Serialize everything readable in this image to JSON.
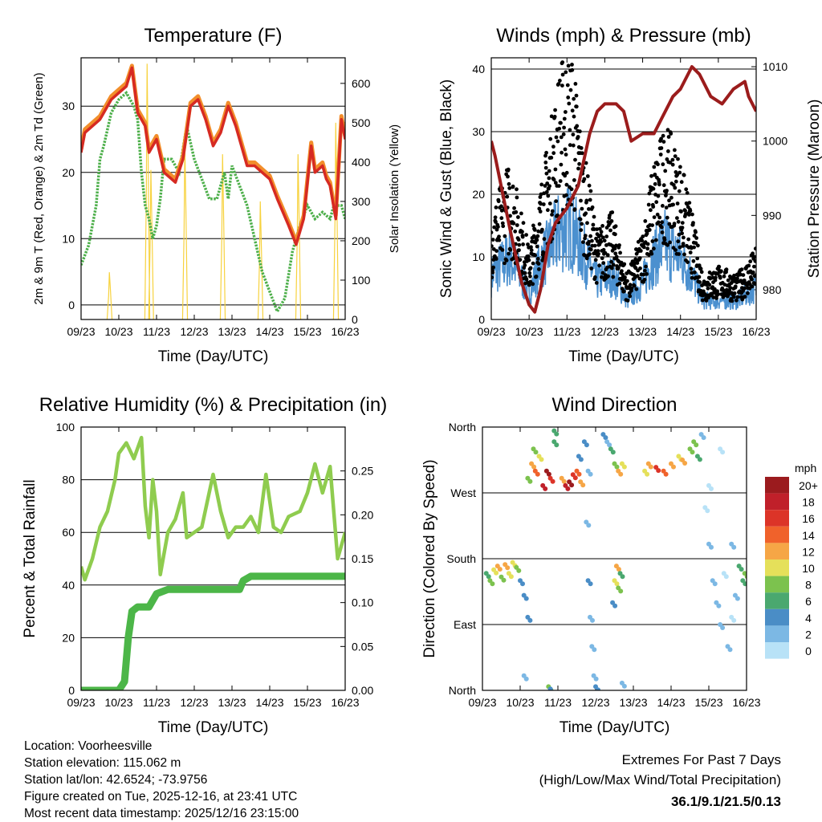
{
  "chart_data": [
    {
      "type": "line",
      "title": "Temperature (F)",
      "xlabel": "Time (Day/UTC)",
      "ylabel": "2m & 9m T (Red, Orange) & 2m Td (Green)",
      "y2label": "Solar Insolation (Yellow)",
      "x_tick_labels": [
        "09/23",
        "10/23",
        "11/23",
        "12/23",
        "13/23",
        "14/23",
        "15/23",
        "16/23"
      ],
      "xlim": [
        0,
        7
      ],
      "ylim": [
        -2.2,
        37.3
      ],
      "y_ticks": [
        0,
        10,
        20,
        30
      ],
      "y_tick_labels": [
        "0",
        "10",
        "20",
        "30"
      ],
      "y2lim": [
        0,
        665
      ],
      "y2_ticks": [
        0,
        100,
        200,
        300,
        400,
        500,
        600
      ],
      "y2_tick_labels": [
        "0",
        "100",
        "200",
        "300",
        "400",
        "500",
        "600"
      ],
      "series": [
        {
          "name": "9m T",
          "color": "#f28e2b",
          "axis": "left",
          "x": [
            0,
            0.1,
            0.5,
            0.8,
            1.0,
            1.2,
            1.35,
            1.5,
            1.7,
            1.8,
            2.0,
            2.2,
            2.5,
            2.7,
            2.9,
            3.1,
            3.3,
            3.5,
            3.7,
            3.9,
            4.1,
            4.4,
            4.6,
            4.8,
            5.0,
            5.2,
            5.5,
            5.7,
            5.9,
            6.1,
            6.2,
            6.4,
            6.5,
            6.6,
            6.75,
            6.9,
            7.0
          ],
          "y": [
            23.5,
            26.5,
            28.5,
            31.5,
            32.5,
            33.5,
            36.1,
            29.5,
            27.5,
            23.5,
            25.5,
            20.5,
            19,
            22.5,
            30.5,
            31.5,
            28.5,
            24.5,
            26.5,
            30.5,
            27.5,
            21.5,
            21.5,
            20.5,
            19.5,
            16.5,
            12.5,
            9.6,
            13.5,
            24.5,
            20.5,
            21.5,
            19.5,
            18.5,
            13.5,
            28.5,
            25.5
          ]
        },
        {
          "name": "2m T",
          "color": "#d62a22",
          "axis": "left",
          "x": [
            0,
            0.1,
            0.5,
            0.8,
            1.0,
            1.2,
            1.35,
            1.5,
            1.7,
            1.8,
            2.0,
            2.2,
            2.5,
            2.7,
            2.9,
            3.1,
            3.3,
            3.5,
            3.7,
            3.9,
            4.1,
            4.4,
            4.6,
            4.8,
            5.0,
            5.2,
            5.5,
            5.7,
            5.9,
            6.1,
            6.2,
            6.4,
            6.5,
            6.6,
            6.75,
            6.9,
            7.0
          ],
          "y": [
            23,
            26,
            28,
            31,
            32,
            33,
            35.8,
            29,
            27,
            23,
            25,
            20,
            18.5,
            22,
            30,
            31,
            28,
            24,
            26,
            30,
            27,
            21,
            21,
            20,
            19,
            16,
            12,
            9.1,
            13,
            24,
            20,
            21,
            19,
            18,
            13,
            28,
            25
          ]
        },
        {
          "name": "2m Td",
          "color": "#4daf4a",
          "axis": "left",
          "x": [
            0,
            0.2,
            0.4,
            0.5,
            0.6,
            0.8,
            1.0,
            1.2,
            1.4,
            1.5,
            1.6,
            1.7,
            1.8,
            1.9,
            2.0,
            2.1,
            2.2,
            2.4,
            2.6,
            2.8,
            3.0,
            3.2,
            3.4,
            3.6,
            3.8,
            3.9,
            4.0,
            4.2,
            4.4,
            4.6,
            4.8,
            5.0,
            5.2,
            5.4,
            5.6,
            5.8,
            6.0,
            6.2,
            6.4,
            6.6,
            6.7,
            6.9,
            7.0
          ],
          "y": [
            6,
            9,
            15,
            22,
            24,
            29,
            31,
            32,
            30,
            28,
            20,
            15,
            13,
            10,
            12,
            16,
            22,
            22,
            20,
            27,
            22,
            19,
            16,
            16,
            20,
            16,
            21,
            18,
            15,
            10,
            5,
            2,
            -1,
            1,
            8,
            12,
            15,
            13,
            14,
            13,
            15,
            15,
            13
          ]
        },
        {
          "name": "Solar Insolation",
          "color": "#f7d23e",
          "axis": "right",
          "peaks_x": [
            0.75,
            1.75,
            1.85,
            2.75,
            3.75,
            4.75,
            5.75,
            6.75
          ],
          "peaks_y": [
            120,
            650,
            380,
            450,
            420,
            300,
            420,
            500
          ]
        }
      ]
    },
    {
      "type": "scatter",
      "title": "Winds (mph) & Pressure (mb)",
      "xlabel": "Time (Day/UTC)",
      "ylabel": "Sonic Wind & Gust (Blue, Black)",
      "y2label": "Station Pressure (Maroon)",
      "x_tick_labels": [
        "09/23",
        "10/23",
        "11/23",
        "12/23",
        "13/23",
        "14/23",
        "15/23",
        "16/23"
      ],
      "xlim": [
        0,
        7
      ],
      "ylim": [
        0,
        41.8
      ],
      "y_ticks": [
        0,
        10,
        20,
        30,
        40
      ],
      "y_tick_labels": [
        "0",
        "10",
        "20",
        "30",
        "40"
      ],
      "y2lim": [
        976,
        1011.2
      ],
      "y2_ticks": [
        980,
        990,
        1000,
        1010
      ],
      "y2_tick_labels": [
        "980",
        "990",
        "1000",
        "1010"
      ],
      "series": [
        {
          "name": "Gust",
          "color": "#000000",
          "axis": "left",
          "x": [
            0,
            0.5,
            1.0,
            1.3,
            1.8,
            2.1,
            2.4,
            2.8,
            3.2,
            3.6,
            4.0,
            4.3,
            4.6,
            5.0,
            5.3,
            5.6,
            6.0,
            6.5,
            7.0
          ],
          "y": [
            12,
            18,
            8,
            15,
            28,
            32,
            20,
            10,
            12,
            5,
            10,
            18,
            22,
            18,
            12,
            5,
            6,
            5,
            8
          ]
        },
        {
          "name": "Sonic Wind",
          "color": "#4b90cf",
          "axis": "left",
          "x": [
            0,
            0.5,
            1.0,
            1.3,
            1.8,
            2.1,
            2.4,
            2.8,
            3.2,
            3.6,
            4.0,
            4.3,
            4.6,
            5.0,
            5.3,
            5.6,
            6.0,
            6.5,
            7.0
          ],
          "y": [
            7,
            10,
            4,
            9,
            14,
            15,
            11,
            6,
            7,
            3,
            6,
            10,
            12,
            10,
            7,
            3,
            3,
            3,
            5
          ]
        },
        {
          "name": "Station Pressure",
          "color": "#9b1c1c",
          "axis": "right",
          "x": [
            0,
            0.1,
            0.3,
            0.5,
            0.8,
            1.0,
            1.15,
            1.3,
            1.5,
            1.7,
            2.0,
            2.3,
            2.6,
            2.8,
            3.0,
            3.3,
            3.5,
            3.7,
            4.0,
            4.3,
            4.5,
            4.8,
            5.0,
            5.3,
            5.5,
            5.8,
            6.1,
            6.4,
            6.7,
            6.8,
            7.0
          ],
          "y": [
            1000,
            998,
            993,
            988,
            981,
            978,
            977,
            980,
            986,
            989,
            991,
            994,
            1001,
            1004,
            1005,
            1005,
            1004,
            1000,
            1001,
            1001,
            1003,
            1006,
            1007,
            1010,
            1009,
            1006,
            1005,
            1007,
            1008,
            1006,
            1004
          ]
        }
      ]
    },
    {
      "type": "line",
      "title": "Relative Humidity (%) & Precipitation (in)",
      "xlabel": "Time (Day/UTC)",
      "ylabel": "Percent & Total Rainfall",
      "x_tick_labels": [
        "09/23",
        "10/23",
        "11/23",
        "12/23",
        "13/23",
        "14/23",
        "15/23",
        "16/23"
      ],
      "xlim": [
        0,
        7
      ],
      "ylim": [
        0,
        100
      ],
      "y_ticks": [
        0,
        20,
        40,
        60,
        80,
        100
      ],
      "y_tick_labels": [
        "0",
        "20",
        "40",
        "60",
        "80",
        "100"
      ],
      "y2lim": [
        0,
        0.3
      ],
      "y2_ticks": [
        0,
        0.05,
        0.1,
        0.15,
        0.2,
        0.25
      ],
      "y2_tick_labels": [
        "0.00",
        "0.05",
        "0.10",
        "0.15",
        "0.20",
        "0.25"
      ],
      "series": [
        {
          "name": "Relative Humidity",
          "color": "#8fcc4f",
          "axis": "left",
          "x": [
            0,
            0.1,
            0.3,
            0.5,
            0.7,
            0.9,
            1.0,
            1.2,
            1.4,
            1.6,
            1.7,
            1.8,
            1.9,
            2.0,
            2.1,
            2.3,
            2.5,
            2.7,
            2.8,
            3.0,
            3.2,
            3.5,
            3.7,
            3.9,
            4.1,
            4.3,
            4.5,
            4.7,
            4.9,
            5.1,
            5.3,
            5.5,
            5.8,
            6.0,
            6.2,
            6.4,
            6.6,
            6.8,
            7.0
          ],
          "y": [
            47,
            42,
            50,
            62,
            68,
            80,
            90,
            94,
            88,
            96,
            70,
            58,
            80,
            68,
            44,
            60,
            65,
            75,
            58,
            60,
            62,
            82,
            68,
            58,
            62,
            62,
            66,
            60,
            82,
            62,
            60,
            66,
            68,
            75,
            86,
            75,
            85,
            50,
            60
          ]
        },
        {
          "name": "Total Precipitation",
          "color": "#4cb648",
          "axis": "right",
          "x": [
            0,
            1.0,
            1.15,
            1.25,
            1.35,
            1.5,
            1.8,
            2.0,
            2.3,
            3.0,
            4.2,
            4.3,
            4.5,
            7.0
          ],
          "y": [
            0,
            0,
            0.01,
            0.06,
            0.09,
            0.095,
            0.095,
            0.11,
            0.115,
            0.115,
            0.115,
            0.125,
            0.13,
            0.13
          ]
        }
      ]
    },
    {
      "type": "scatter",
      "title": "Wind Direction",
      "xlabel": "Time (Day/UTC)",
      "ylabel": "Direction (Colored By Speed)",
      "x_tick_labels": [
        "09/23",
        "10/23",
        "11/23",
        "12/23",
        "13/23",
        "14/23",
        "15/23",
        "16/23"
      ],
      "xlim": [
        0,
        7
      ],
      "ylim": [
        0,
        360
      ],
      "y_ticks": [
        0,
        90,
        180,
        270,
        360
      ],
      "y_tick_labels": [
        "North",
        "East",
        "South",
        "West",
        "North"
      ],
      "legend": {
        "title": "mph",
        "labels": [
          "20+",
          "18",
          "16",
          "14",
          "12",
          "10",
          "8",
          "6",
          "4",
          "2",
          "0"
        ],
        "colors": [
          "#9b1b1e",
          "#c0202a",
          "#dc3428",
          "#f0622b",
          "#f6a646",
          "#e5e05a",
          "#7cc24e",
          "#4aa86f",
          "#4a8dc6",
          "#7cb8e4",
          "#b8e2f7"
        ]
      },
      "points": [
        [
          0.1,
          160,
          6
        ],
        [
          0.2,
          150,
          8
        ],
        [
          0.3,
          165,
          10
        ],
        [
          0.4,
          170,
          12
        ],
        [
          0.5,
          155,
          9
        ],
        [
          0.6,
          172,
          13
        ],
        [
          0.7,
          160,
          11
        ],
        [
          0.8,
          175,
          10
        ],
        [
          0.9,
          168,
          8
        ],
        [
          1.0,
          150,
          5
        ],
        [
          1.1,
          130,
          4
        ],
        [
          1.2,
          100,
          4
        ],
        [
          1.1,
          20,
          3
        ],
        [
          1.2,
          290,
          8
        ],
        [
          1.3,
          310,
          12
        ],
        [
          1.35,
          330,
          9
        ],
        [
          1.4,
          300,
          14
        ],
        [
          1.5,
          320,
          10
        ],
        [
          1.6,
          280,
          18
        ],
        [
          1.7,
          300,
          20
        ],
        [
          1.8,
          290,
          16
        ],
        [
          1.9,
          340,
          6
        ],
        [
          1.9,
          355,
          7
        ],
        [
          1.75,
          5,
          8
        ],
        [
          1.8,
          2,
          5
        ],
        [
          2.1,
          290,
          12
        ],
        [
          2.2,
          280,
          18
        ],
        [
          2.3,
          285,
          20
        ],
        [
          2.4,
          295,
          16
        ],
        [
          2.5,
          300,
          14
        ],
        [
          2.6,
          285,
          12
        ],
        [
          2.55,
          320,
          5
        ],
        [
          2.7,
          340,
          4
        ],
        [
          2.8,
          300,
          3
        ],
        [
          2.75,
          230,
          2
        ],
        [
          2.8,
          150,
          4
        ],
        [
          2.85,
          100,
          3
        ],
        [
          2.9,
          60,
          2
        ],
        [
          2.95,
          20,
          3
        ],
        [
          3.0,
          5,
          4
        ],
        [
          3.2,
          350,
          4
        ],
        [
          3.3,
          340,
          3
        ],
        [
          3.4,
          330,
          6
        ],
        [
          3.5,
          310,
          8
        ],
        [
          3.6,
          300,
          12
        ],
        [
          3.7,
          310,
          10
        ],
        [
          3.5,
          150,
          10
        ],
        [
          3.55,
          170,
          12
        ],
        [
          3.6,
          140,
          8
        ],
        [
          3.45,
          120,
          4
        ],
        [
          3.65,
          160,
          6
        ],
        [
          3.7,
          10,
          2
        ],
        [
          4.3,
          300,
          10
        ],
        [
          4.4,
          310,
          12
        ],
        [
          4.6,
          305,
          16
        ],
        [
          4.8,
          300,
          14
        ],
        [
          5.0,
          310,
          12
        ],
        [
          5.2,
          320,
          10
        ],
        [
          5.3,
          315,
          13
        ],
        [
          5.5,
          330,
          8
        ],
        [
          5.6,
          340,
          9
        ],
        [
          5.7,
          320,
          6
        ],
        [
          5.8,
          350,
          2
        ],
        [
          5.9,
          250,
          1
        ],
        [
          6.0,
          200,
          2
        ],
        [
          6.1,
          150,
          3
        ],
        [
          6.2,
          120,
          2
        ],
        [
          6.3,
          90,
          3
        ],
        [
          6.4,
          160,
          1
        ],
        [
          6.5,
          60,
          2
        ],
        [
          6.6,
          200,
          3
        ],
        [
          6.7,
          130,
          2
        ],
        [
          6.8,
          170,
          6
        ],
        [
          6.9,
          150,
          7
        ],
        [
          6.95,
          160,
          8
        ],
        [
          6.0,
          280,
          1
        ],
        [
          6.3,
          330,
          1
        ],
        [
          6.6,
          100,
          1
        ]
      ]
    }
  ],
  "footer": {
    "location": "Location: Voorheesville",
    "elevation": "Station elevation: 115.062 m",
    "latlon": "Station lat/lon: 42.6524; -73.9756",
    "created": "Figure created on Tue, 2025-12-16, at 23:41 UTC",
    "recent": "Most recent data timestamp: 2025/12/16 23:15:00",
    "extremes_title": "Extremes For Past 7 Days",
    "extremes_sub": "(High/Low/Max Wind/Total Precipitation)",
    "extremes_values": "36.1/9.1/21.5/0.13",
    "extremes_color": "#cc2229"
  }
}
